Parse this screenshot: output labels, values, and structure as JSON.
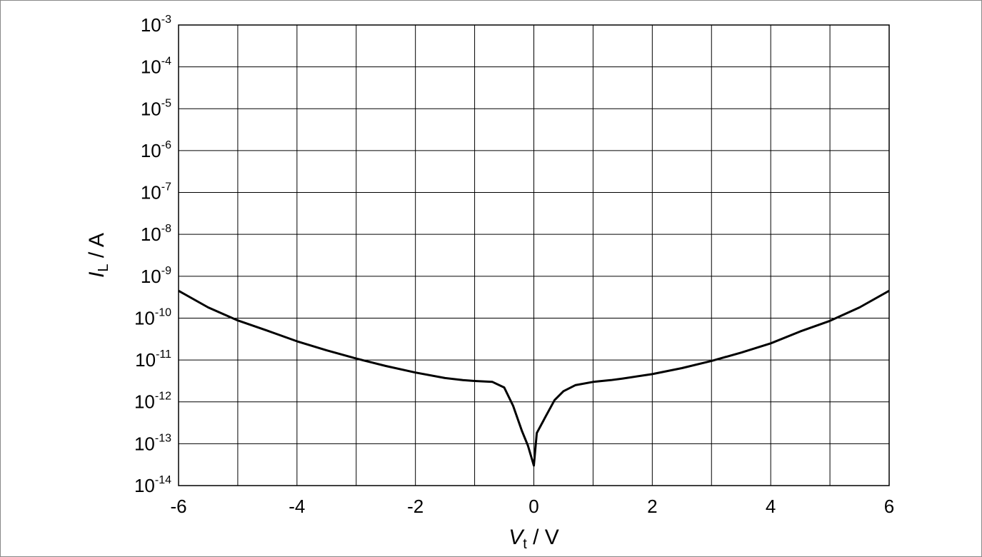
{
  "chart_data": {
    "type": "line",
    "xlabel": {
      "symbol": "V",
      "subscript": "t",
      "unit": " / V"
    },
    "ylabel": {
      "symbol": "I",
      "subscript": "L",
      "unit": " / A"
    },
    "xlim": [
      -6,
      6
    ],
    "ylim_exponent": [
      -14,
      -3
    ],
    "y_scale": "log",
    "grid": true,
    "x_ticks": [
      "-6",
      "-4",
      "-2",
      "0",
      "2",
      "4",
      "6"
    ],
    "y_ticks": [
      {
        "base": "10",
        "exp": "-14"
      },
      {
        "base": "10",
        "exp": "-13"
      },
      {
        "base": "10",
        "exp": "-12"
      },
      {
        "base": "10",
        "exp": "-11"
      },
      {
        "base": "10",
        "exp": "-10"
      },
      {
        "base": "10",
        "exp": "-9"
      },
      {
        "base": "10",
        "exp": "-8"
      },
      {
        "base": "10",
        "exp": "-7"
      },
      {
        "base": "10",
        "exp": "-6"
      },
      {
        "base": "10",
        "exp": "-5"
      },
      {
        "base": "10",
        "exp": "-4"
      },
      {
        "base": "10",
        "exp": "-3"
      }
    ],
    "series": [
      {
        "color": "#000000",
        "points": [
          [
            -6.0,
            4.5e-10
          ],
          [
            -5.5,
            1.8e-10
          ],
          [
            -5.0,
            8.8e-11
          ],
          [
            -4.5,
            5e-11
          ],
          [
            -4.0,
            2.8e-11
          ],
          [
            -3.5,
            1.7e-11
          ],
          [
            -3.0,
            1.08e-11
          ],
          [
            -2.5,
            7.2e-12
          ],
          [
            -2.0,
            5e-12
          ],
          [
            -1.5,
            3.7e-12
          ],
          [
            -1.2,
            3.3e-12
          ],
          [
            -1.0,
            3.15e-12
          ],
          [
            -0.7,
            3e-12
          ],
          [
            -0.5,
            2.2e-12
          ],
          [
            -0.35,
            8e-13
          ],
          [
            -0.2,
            2e-13
          ],
          [
            -0.1,
            9e-14
          ],
          [
            0.0,
            3e-14
          ],
          [
            0.05,
            1.8e-13
          ],
          [
            0.2,
            4.5e-13
          ],
          [
            0.35,
            1.1e-12
          ],
          [
            0.5,
            1.8e-12
          ],
          [
            0.7,
            2.5e-12
          ],
          [
            1.0,
            3e-12
          ],
          [
            1.3,
            3.3e-12
          ],
          [
            1.5,
            3.6e-12
          ],
          [
            2.0,
            4.6e-12
          ],
          [
            2.5,
            6.4e-12
          ],
          [
            3.0,
            9.5e-12
          ],
          [
            3.5,
            1.5e-11
          ],
          [
            4.0,
            2.5e-11
          ],
          [
            4.5,
            4.8e-11
          ],
          [
            5.0,
            8.6e-11
          ],
          [
            5.5,
            1.8e-10
          ],
          [
            6.0,
            4.5e-10
          ]
        ]
      }
    ]
  }
}
